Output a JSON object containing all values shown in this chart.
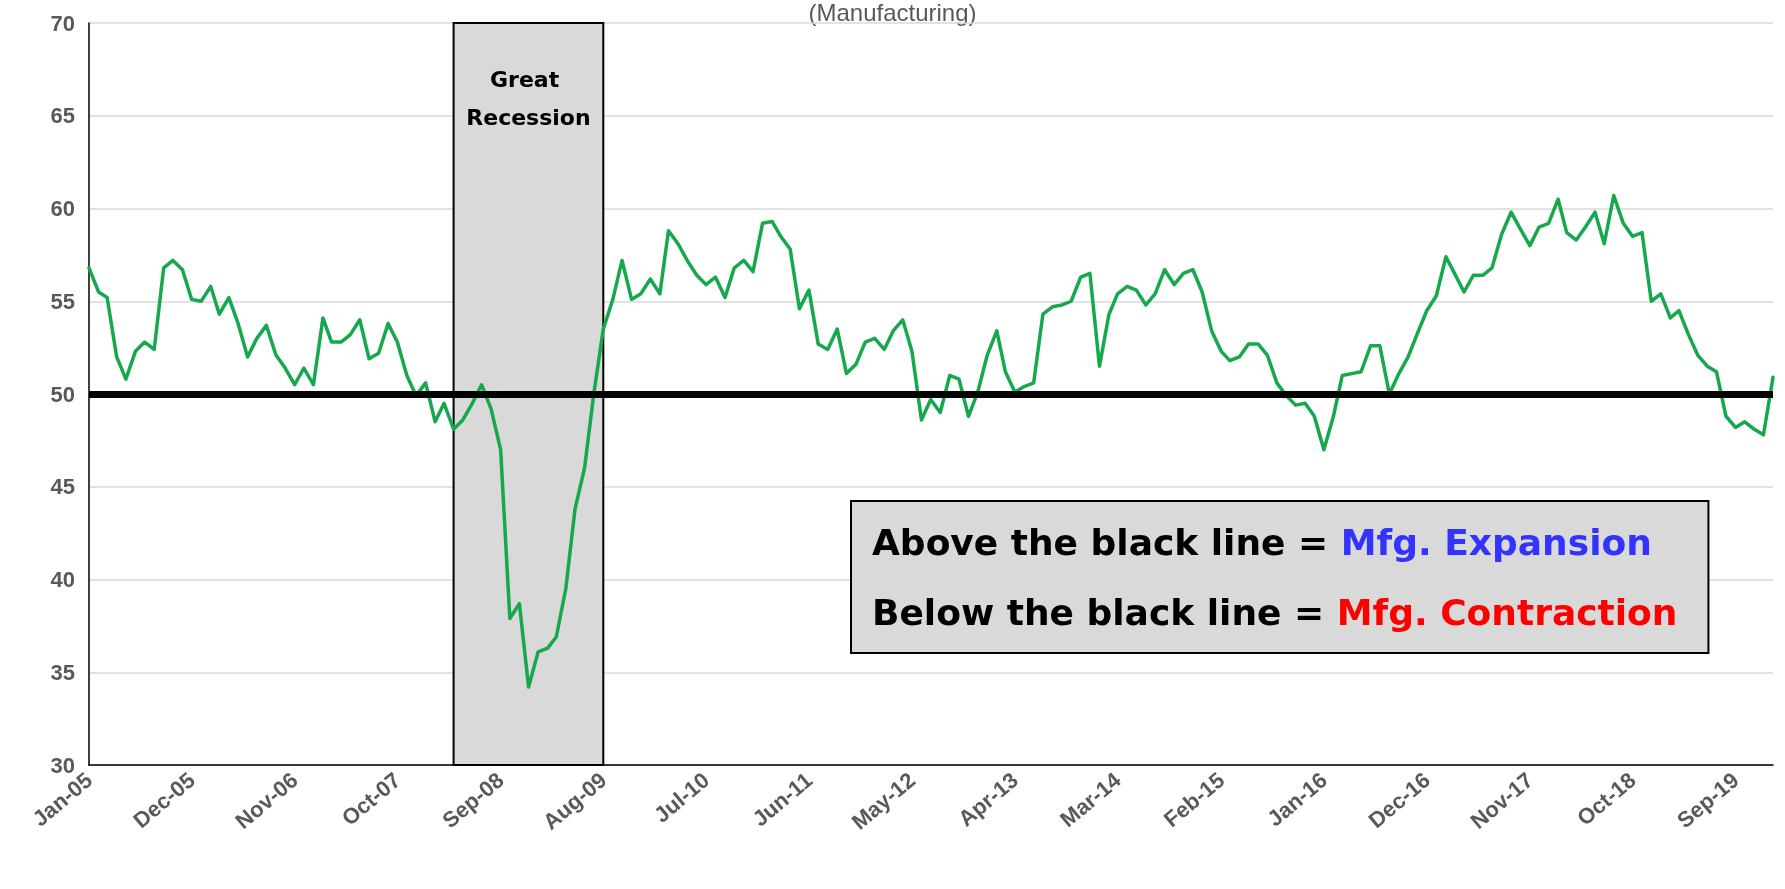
{
  "chart_data": {
    "type": "line",
    "subtitle": "(Manufacturing)",
    "x": [
      "2005-01",
      "2005-02",
      "2005-03",
      "2005-04",
      "2005-05",
      "2005-06",
      "2005-07",
      "2005-08",
      "2005-09",
      "2005-10",
      "2005-11",
      "2005-12",
      "2006-01",
      "2006-02",
      "2006-03",
      "2006-04",
      "2006-05",
      "2006-06",
      "2006-07",
      "2006-08",
      "2006-09",
      "2006-10",
      "2006-11",
      "2006-12",
      "2007-01",
      "2007-02",
      "2007-03",
      "2007-04",
      "2007-05",
      "2007-06",
      "2007-07",
      "2007-08",
      "2007-09",
      "2007-10",
      "2007-11",
      "2007-12",
      "2008-01",
      "2008-02",
      "2008-03",
      "2008-04",
      "2008-05",
      "2008-06",
      "2008-07",
      "2008-08",
      "2008-09",
      "2008-10",
      "2008-11",
      "2008-12",
      "2009-01",
      "2009-02",
      "2009-03",
      "2009-04",
      "2009-05",
      "2009-06",
      "2009-07",
      "2009-08",
      "2009-09",
      "2009-10",
      "2009-11",
      "2009-12",
      "2010-01",
      "2010-02",
      "2010-03",
      "2010-04",
      "2010-05",
      "2010-06",
      "2010-07",
      "2010-08",
      "2010-09",
      "2010-10",
      "2010-11",
      "2010-12",
      "2011-01",
      "2011-02",
      "2011-03",
      "2011-04",
      "2011-05",
      "2011-06",
      "2011-07",
      "2011-08",
      "2011-09",
      "2011-10",
      "2011-11",
      "2011-12",
      "2012-01",
      "2012-02",
      "2012-03",
      "2012-04",
      "2012-05",
      "2012-06",
      "2012-07",
      "2012-08",
      "2012-09",
      "2012-10",
      "2012-11",
      "2012-12",
      "2013-01",
      "2013-02",
      "2013-03",
      "2013-04",
      "2013-05",
      "2013-06",
      "2013-07",
      "2013-08",
      "2013-09",
      "2013-10",
      "2013-11",
      "2013-12",
      "2014-01",
      "2014-02",
      "2014-03",
      "2014-04",
      "2014-05",
      "2014-06",
      "2014-07",
      "2014-08",
      "2014-09",
      "2014-10",
      "2014-11",
      "2014-12",
      "2015-01",
      "2015-02",
      "2015-03",
      "2015-04",
      "2015-05",
      "2015-06",
      "2015-07",
      "2015-08",
      "2015-09",
      "2015-10",
      "2015-11",
      "2015-12",
      "2016-01",
      "2016-02",
      "2016-03",
      "2016-04",
      "2016-05",
      "2016-06",
      "2016-07",
      "2016-08",
      "2016-09",
      "2016-10",
      "2016-11",
      "2016-12",
      "2017-01",
      "2017-02",
      "2017-03",
      "2017-04",
      "2017-05",
      "2017-06",
      "2017-07",
      "2017-08",
      "2017-09",
      "2017-10",
      "2017-11",
      "2017-12",
      "2018-01",
      "2018-02",
      "2018-03",
      "2018-04",
      "2018-05",
      "2018-06",
      "2018-07",
      "2018-08",
      "2018-09",
      "2018-10",
      "2018-11",
      "2018-12",
      "2019-01",
      "2019-02",
      "2019-03",
      "2019-04",
      "2019-05",
      "2019-06",
      "2019-07",
      "2019-08",
      "2019-09",
      "2019-10",
      "2019-11",
      "2019-12",
      "2020-01"
    ],
    "series": [
      {
        "color": "#16a84d",
        "values": [
          56.8,
          55.5,
          55.2,
          52.0,
          50.8,
          52.3,
          52.8,
          52.4,
          56.8,
          57.2,
          56.7,
          55.1,
          55.0,
          55.8,
          54.3,
          55.2,
          53.8,
          52.0,
          53.0,
          53.7,
          52.1,
          51.4,
          50.5,
          51.4,
          50.5,
          54.1,
          52.8,
          52.8,
          53.2,
          54.0,
          51.9,
          52.2,
          53.8,
          52.8,
          51.0,
          49.9,
          50.6,
          48.5,
          49.5,
          48.1,
          48.6,
          49.5,
          50.5,
          49.2,
          47.0,
          37.9,
          38.7,
          34.2,
          36.1,
          36.3,
          36.9,
          39.5,
          43.8,
          46.0,
          50.0,
          53.5,
          55.1,
          57.2,
          55.1,
          55.4,
          56.2,
          55.4,
          58.8,
          58.1,
          57.2,
          56.4,
          55.9,
          56.3,
          55.2,
          56.8,
          57.2,
          56.6,
          59.2,
          59.3,
          58.5,
          57.8,
          54.6,
          55.6,
          52.7,
          52.4,
          53.5,
          51.1,
          51.6,
          52.8,
          53.0,
          52.4,
          53.4,
          54.0,
          52.3,
          48.6,
          49.7,
          49.0,
          51.0,
          50.8,
          48.8,
          50.1,
          52.1,
          53.4,
          51.2,
          50.1,
          50.4,
          50.6,
          54.3,
          54.7,
          54.8,
          55.0,
          56.3,
          56.5,
          51.5,
          54.3,
          55.4,
          55.8,
          55.6,
          54.8,
          55.4,
          56.7,
          55.9,
          56.5,
          56.7,
          55.5,
          53.4,
          52.3,
          51.8,
          52.0,
          52.7,
          52.7,
          52.1,
          50.6,
          49.9,
          49.4,
          49.5,
          48.8,
          47.0,
          48.8,
          51.0,
          51.1,
          51.2,
          52.6,
          52.6,
          50.0,
          51.1,
          52.0,
          53.3,
          54.5,
          55.3,
          57.4,
          56.5,
          55.5,
          56.4,
          56.4,
          56.8,
          58.6,
          59.8,
          58.9,
          58.0,
          59.0,
          59.2,
          60.5,
          58.7,
          58.3,
          59.0,
          59.8,
          58.1,
          60.7,
          59.2,
          58.5,
          58.7,
          55.0,
          55.4,
          54.1,
          54.5,
          53.2,
          52.1,
          51.5,
          51.2,
          48.8,
          48.2,
          48.5,
          48.1,
          47.8,
          50.9
        ]
      }
    ],
    "xlim": [
      "2005-01",
      "2020-01"
    ],
    "xticks": [
      {
        "value": "2005-01",
        "label": "Jan-05"
      },
      {
        "value": "2005-12",
        "label": "Dec-05"
      },
      {
        "value": "2006-11",
        "label": "Nov-06"
      },
      {
        "value": "2007-10",
        "label": "Oct-07"
      },
      {
        "value": "2008-09",
        "label": "Sep-08"
      },
      {
        "value": "2009-08",
        "label": "Aug-09"
      },
      {
        "value": "2010-07",
        "label": "Jul-10"
      },
      {
        "value": "2011-06",
        "label": "Jun-11"
      },
      {
        "value": "2012-05",
        "label": "May-12"
      },
      {
        "value": "2013-04",
        "label": "Apr-13"
      },
      {
        "value": "2014-03",
        "label": "Mar-14"
      },
      {
        "value": "2015-02",
        "label": "Feb-15"
      },
      {
        "value": "2016-01",
        "label": "Jan-16"
      },
      {
        "value": "2016-12",
        "label": "Dec-16"
      },
      {
        "value": "2017-11",
        "label": "Nov-17"
      },
      {
        "value": "2018-10",
        "label": "Oct-18"
      },
      {
        "value": "2019-09",
        "label": "Sep-19"
      }
    ],
    "ylim": [
      30,
      70
    ],
    "yticks": [
      30,
      35,
      40,
      45,
      50,
      55,
      60,
      65,
      70
    ],
    "grid": "y",
    "marker": "none",
    "line_style": "solid",
    "ref_lines": [
      {
        "axis": "y",
        "value": 50,
        "color": "#000000"
      }
    ],
    "bands": [
      {
        "axis": "x",
        "from": "2008-04",
        "to": "2009-08",
        "label": "Great Recession",
        "color": "#d9d9d9"
      }
    ],
    "annotations": [
      "Above the black line = Mfg. Expansion",
      "Below the black line = Mfg. Contraction"
    ]
  }
}
